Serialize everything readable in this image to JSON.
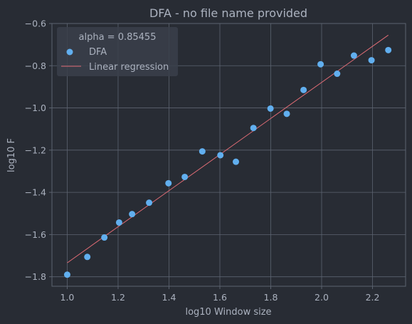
{
  "chart_data": {
    "type": "scatter",
    "title": "DFA - no file name provided",
    "xlabel": "log10 Window size",
    "ylabel": "log10 F",
    "xlim": [
      0.94,
      2.33
    ],
    "ylim": [
      -1.845,
      -0.6
    ],
    "xticks": [
      1.0,
      1.2,
      1.4,
      1.6,
      1.8,
      2.0,
      2.2
    ],
    "xtick_labels": [
      "1.0",
      "1.2",
      "1.4",
      "1.6",
      "1.8",
      "2.0",
      "2.2"
    ],
    "yticks": [
      -0.6,
      -0.8,
      -1.0,
      -1.2,
      -1.4,
      -1.6,
      -1.8
    ],
    "ytick_labels": [
      "−0.6",
      "−0.8",
      "−1.0",
      "−1.2",
      "−1.4",
      "−1.6",
      "−1.8"
    ],
    "grid": true,
    "legend": {
      "placement": "top-left",
      "title": "alpha = 0.85455",
      "entries": [
        "DFA",
        "Linear regression"
      ]
    },
    "series": [
      {
        "name": "DFA",
        "kind": "scatter",
        "color": "#61afef",
        "points": [
          [
            1.0,
            -1.79
          ],
          [
            1.079,
            -1.706
          ],
          [
            1.146,
            -1.614
          ],
          [
            1.204,
            -1.543
          ],
          [
            1.255,
            -1.503
          ],
          [
            1.322,
            -1.449
          ],
          [
            1.398,
            -1.357
          ],
          [
            1.462,
            -1.327
          ],
          [
            1.531,
            -1.206
          ],
          [
            1.602,
            -1.224
          ],
          [
            1.663,
            -1.255
          ],
          [
            1.732,
            -1.095
          ],
          [
            1.799,
            -1.003
          ],
          [
            1.863,
            -1.028
          ],
          [
            1.929,
            -0.915
          ],
          [
            1.996,
            -0.793
          ],
          [
            2.061,
            -0.838
          ],
          [
            2.127,
            -0.752
          ],
          [
            2.196,
            -0.774
          ],
          [
            2.262,
            -0.726
          ]
        ]
      },
      {
        "name": "Linear regression",
        "kind": "line",
        "color": "#e06c75",
        "points": [
          [
            1.0,
            -1.734
          ],
          [
            2.262,
            -0.655
          ]
        ]
      }
    ]
  },
  "colors": {
    "background": "#282c34",
    "grid": "#5c6370",
    "text": "#abb2bf",
    "legend_bg": "#3a3f4b"
  }
}
